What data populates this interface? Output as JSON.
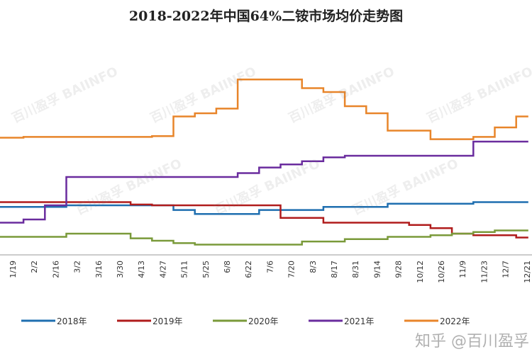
{
  "chart_data": {
    "type": "line",
    "title": "2018-2022年中国64%二铵市场均价走势图",
    "xlabel": "",
    "ylabel": "",
    "ylim": [
      1900,
      4300
    ],
    "y_axis_visible": false,
    "grid": false,
    "legend_placement": "bottom",
    "step_lines": true,
    "categories": [
      "1/19",
      "2/2",
      "2/16",
      "3/2",
      "3/16",
      "3/30",
      "4/13",
      "4/27",
      "5/11",
      "5/25",
      "6/8",
      "6/22",
      "7/6",
      "7/20",
      "8/3",
      "8/17",
      "8/31",
      "9/14",
      "9/28",
      "10/12",
      "10/26",
      "11/9",
      "11/23",
      "12/7",
      "12/21"
    ],
    "series": [
      {
        "name": "2018年",
        "color": "#1f6fb0",
        "values": [
          2610,
          2610,
          2610,
          2630,
          2630,
          2630,
          2630,
          2630,
          2570,
          2520,
          2520,
          2520,
          2570,
          2570,
          2570,
          2610,
          2610,
          2610,
          2650,
          2650,
          2650,
          2650,
          2670,
          2670,
          2670
        ]
      },
      {
        "name": "2019年",
        "color": "#b01c1c",
        "values": [
          2670,
          2670,
          2670,
          2670,
          2670,
          2670,
          2640,
          2630,
          2630,
          2630,
          2630,
          2630,
          2630,
          2470,
          2470,
          2410,
          2410,
          2410,
          2410,
          2380,
          2340,
          2270,
          2250,
          2250,
          2220
        ]
      },
      {
        "name": "2020年",
        "color": "#7a9a3a",
        "values": [
          2230,
          2230,
          2230,
          2270,
          2270,
          2270,
          2210,
          2180,
          2150,
          2130,
          2130,
          2130,
          2130,
          2130,
          2170,
          2170,
          2200,
          2200,
          2230,
          2230,
          2250,
          2270,
          2290,
          2310,
          2310
        ]
      },
      {
        "name": "2021年",
        "color": "#6a2c9e",
        "values": [
          2410,
          2450,
          2630,
          2990,
          2990,
          2990,
          2990,
          2990,
          2990,
          2990,
          2990,
          3040,
          3110,
          3150,
          3190,
          3240,
          3260,
          3260,
          3260,
          3260,
          3260,
          3260,
          3440,
          3440,
          3440
        ]
      },
      {
        "name": "2022年",
        "color": "#e8852a",
        "values": [
          3490,
          3500,
          3500,
          3500,
          3500,
          3500,
          3500,
          3510,
          3760,
          3800,
          3860,
          4230,
          4230,
          4230,
          4120,
          4070,
          3890,
          3800,
          3580,
          3580,
          3470,
          3470,
          3500,
          3620,
          3760
        ]
      }
    ]
  },
  "watermark": "百川盈孚 BAIINFO",
  "source_watermark": "知乎 @百川盈孚"
}
